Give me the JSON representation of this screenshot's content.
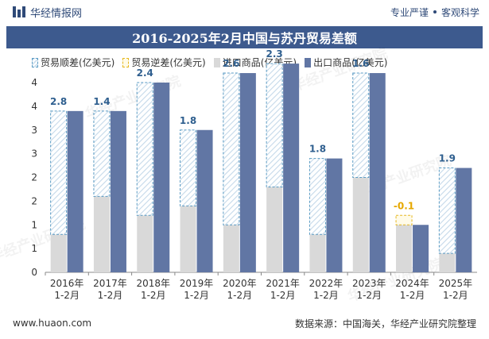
{
  "header": {
    "brand": "华经情报网",
    "tagline_left": "专业严谨",
    "tagline_right": "客观科学"
  },
  "title": "2016-2025年2月中国与苏丹贸易差额",
  "legend": {
    "surplus": "贸易顺差(亿美元)",
    "deficit": "贸易逆差(亿美元)",
    "import": "进口商品(亿美元)",
    "export": "出口商品(亿美元)"
  },
  "footer": {
    "website": "www.huaon.com",
    "source": "数据来源：中国海关，华经产业研究院整理"
  },
  "watermark_text": "华经产业研究院",
  "colors": {
    "export": "#6176a4",
    "import": "#d9d9d9",
    "surplus_border": "#5a9bc4",
    "surplus_hatch": "#cfe0ee",
    "deficit_border": "#e6b820",
    "surplus_label": "#2f5f8f",
    "deficit_label": "#e6a800",
    "title_bg": "#3d5a8e"
  },
  "chart_data": {
    "type": "bar",
    "categories": [
      "2016年\n1-2月",
      "2017年\n1-2月",
      "2018年\n1-2月",
      "2019年\n1-2月",
      "2020年\n1-2月",
      "2021年\n1-2月",
      "2022年\n1-2月",
      "2023年\n1-2月",
      "2024年\n1-2月",
      "2025年\n1-2月"
    ],
    "series": [
      {
        "name": "进口商品(亿美元)",
        "values": [
          0.8,
          1.6,
          1.2,
          1.4,
          1.0,
          1.8,
          0.8,
          2.0,
          1.2,
          0.4
        ]
      },
      {
        "name": "出口商品(亿美元)",
        "values": [
          3.4,
          3.4,
          4.0,
          3.0,
          4.2,
          4.4,
          2.4,
          4.2,
          1.0,
          2.2
        ]
      },
      {
        "name": "贸易差额(亿美元)",
        "values": [
          2.8,
          1.4,
          2.4,
          1.8,
          2.6,
          2.3,
          1.8,
          1.6,
          -0.1,
          1.9
        ]
      }
    ],
    "balance_labels": [
      "2.8",
      "1.4",
      "2.4",
      "1.8",
      "2.6",
      "2.3",
      "1.8",
      "1.6",
      "-0.1",
      "1.9"
    ],
    "yticks": [
      "0",
      "1",
      "1",
      "2",
      "2",
      "3",
      "3",
      "4",
      "4"
    ],
    "ylim": [
      0,
      4
    ],
    "grid": false,
    "legend_position": "top-left"
  }
}
